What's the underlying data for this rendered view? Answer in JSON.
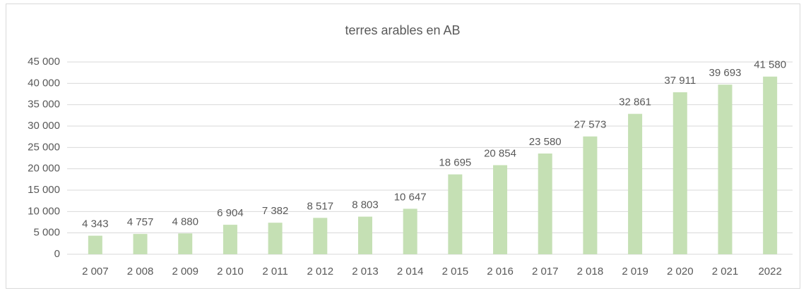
{
  "chart_data": {
    "type": "bar",
    "title": "terres arables en AB",
    "categories": [
      "2 007",
      "2 008",
      "2 009",
      "2 010",
      "2 011",
      "2 012",
      "2 013",
      "2 014",
      "2 015",
      "2 016",
      "2 017",
      "2 018",
      "2 019",
      "2 020",
      "2 021",
      "2022"
    ],
    "values": [
      4343,
      4757,
      4880,
      6904,
      7382,
      8517,
      8803,
      10647,
      18695,
      20854,
      23580,
      27573,
      32861,
      37911,
      39693,
      41580
    ],
    "value_labels": [
      "4 343",
      "4 757",
      "4 880",
      "6 904",
      "7 382",
      "8 517",
      "8 803",
      "10 647",
      "18 695",
      "20 854",
      "23 580",
      "27 573",
      "32 861",
      "37 911",
      "39 693",
      "41 580"
    ],
    "color": "#c5e0b4",
    "ylim": [
      0,
      45000
    ],
    "yticks": [
      0,
      {
        "value": 5000,
        "label": "5 000"
      },
      {
        "value": 10000,
        "label": "10 000"
      },
      {
        "value": 15000,
        "label": "15 000"
      },
      {
        "value": 20000,
        "label": "20 000"
      },
      {
        "value": 25000,
        "label": "25 000"
      },
      {
        "value": 30000,
        "label": "30 000"
      },
      {
        "value": 35000,
        "label": "35 000"
      },
      {
        "value": 40000,
        "label": "40 000"
      },
      {
        "value": 45000,
        "label": "45 000"
      }
    ],
    "grid": true
  }
}
